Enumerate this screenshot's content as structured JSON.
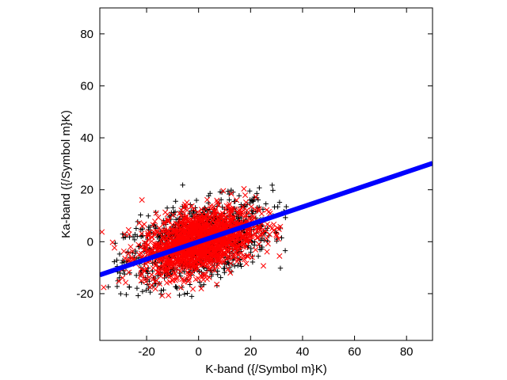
{
  "chart_data": {
    "type": "scatter",
    "title": "",
    "xlabel": "K-band ({/Symbol m}K)",
    "ylabel": "Ka-band ({/Symbol m}K)",
    "xlim": [
      -38,
      90
    ],
    "ylim": [
      -38,
      90
    ],
    "xticks": [
      -20,
      0,
      20,
      40,
      60,
      80
    ],
    "yticks": [
      -20,
      0,
      20,
      40,
      60,
      80
    ],
    "xtick_labels": [
      "-20",
      "0",
      "20",
      "40",
      "60",
      "80"
    ],
    "ytick_labels": [
      "-20",
      "0",
      "20",
      "40",
      "60",
      "80"
    ],
    "grid": false,
    "legend": "none",
    "series": [
      {
        "marker": "plus",
        "color": "#000000",
        "cluster": {
          "center": [
            0,
            0
          ],
          "x_sd": 14,
          "y_sd": 8,
          "correlation": 0.45,
          "count": 1100,
          "x_range": [
            -36,
            36
          ],
          "y_range": [
            -24,
            25
          ]
        }
      },
      {
        "marker": "cross",
        "color": "#ff0000",
        "cluster": {
          "center": [
            0,
            0
          ],
          "x_sd": 11,
          "y_sd": 6.5,
          "correlation": 0.4,
          "count": 1500,
          "x_range": [
            -38,
            32
          ],
          "y_range": [
            -22,
            21
          ]
        }
      },
      {
        "marker": "line",
        "color": "#0000ff",
        "line": {
          "slope": 0.336,
          "intercept": 0.0,
          "x": [
            -38,
            90
          ],
          "y": [
            -12.8,
            30.2
          ]
        }
      }
    ]
  }
}
